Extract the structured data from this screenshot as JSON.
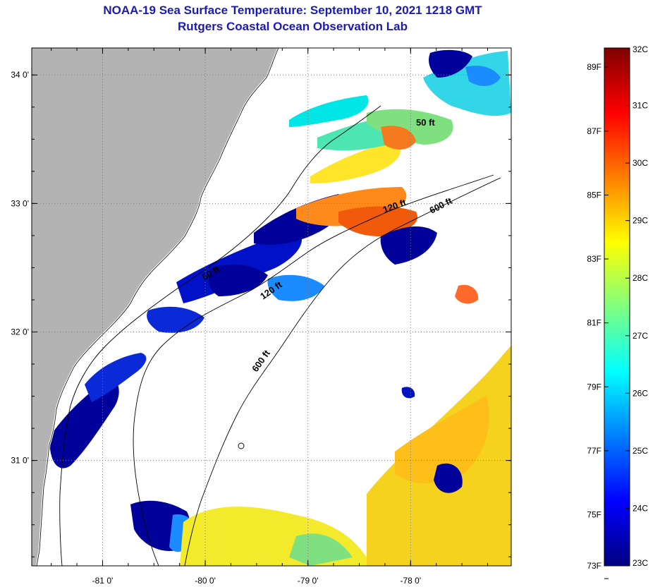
{
  "header": {
    "title": "NOAA-19 Sea Surface Temperature:  September 10, 2021 1218 GMT",
    "subtitle": "Rutgers Coastal Ocean Observation Lab"
  },
  "colors": {
    "land": "#b3b3b3",
    "cloud": "#ffffff",
    "frame": "#000000",
    "gridline": "#7a7a7a",
    "title": "#1b1bb3",
    "colormap": [
      "#00007f",
      "#0000ff",
      "#007fff",
      "#00ffff",
      "#7fff7f",
      "#ffff00",
      "#ff7f00",
      "#ff0000",
      "#7f0000"
    ]
  },
  "map": {
    "x_ticks": [
      {
        "value": -81,
        "label": "-81 0'"
      },
      {
        "value": -80,
        "label": "-80 0'"
      },
      {
        "value": -79,
        "label": "-79 0'"
      },
      {
        "value": -78,
        "label": "-78 0'"
      }
    ],
    "y_ticks": [
      {
        "value": 34,
        "label": "34 0'"
      },
      {
        "value": 33,
        "label": "33 0'"
      },
      {
        "value": 32,
        "label": "32 0'"
      },
      {
        "value": 31,
        "label": "31 0'"
      }
    ],
    "lon_range": [
      -81.69,
      -77.02
    ],
    "lat_range": [
      30.18,
      34.21
    ],
    "contour_labels": [
      "50 ft",
      "120 ft",
      "600 ft",
      "50 ft",
      "120 ft",
      "600 ft"
    ]
  },
  "colorbar": {
    "f_labels": [
      "89F",
      "87F",
      "85F",
      "83F",
      "81F",
      "79F",
      "77F",
      "75F",
      "73F"
    ],
    "c_labels": [
      "32C",
      "31C",
      "30C",
      "29C",
      "28C",
      "27C",
      "26C",
      "25C",
      "24C",
      "23C"
    ]
  }
}
